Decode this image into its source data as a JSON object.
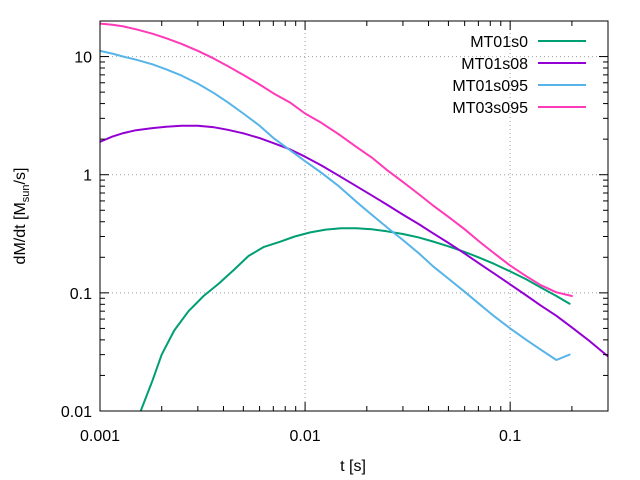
{
  "chart_data": {
    "type": "line",
    "xscale": "log",
    "yscale": "log",
    "xlim": [
      0.001,
      0.3
    ],
    "ylim": [
      0.01,
      20
    ],
    "xlabel": "t [s]",
    "ylabel": {
      "main": "dM/dt [M",
      "sub": "sun",
      "tail": "/s]"
    },
    "grid": true,
    "legend_position": "top-right",
    "xticks": [
      {
        "value": 0.001,
        "label": "0.001"
      },
      {
        "value": 0.01,
        "label": "0.01"
      },
      {
        "value": 0.1,
        "label": "0.1"
      }
    ],
    "yticks": [
      {
        "value": 0.01,
        "label": "0.01"
      },
      {
        "value": 0.1,
        "label": "0.1"
      },
      {
        "value": 1,
        "label": "1"
      },
      {
        "value": 10,
        "label": "10"
      }
    ],
    "series": [
      {
        "name": "MT01s0",
        "color": "#009e73",
        "x": [
          0.00158,
          0.0018,
          0.002,
          0.0023,
          0.0027,
          0.0032,
          0.0038,
          0.0045,
          0.0053,
          0.0063,
          0.0075,
          0.0089,
          0.0106,
          0.0126,
          0.015,
          0.0178,
          0.0211,
          0.025,
          0.03,
          0.0356,
          0.042,
          0.05,
          0.06,
          0.071,
          0.084,
          0.1,
          0.12,
          0.141,
          0.168,
          0.195
        ],
        "y": [
          0.01,
          0.018,
          0.03,
          0.048,
          0.07,
          0.094,
          0.12,
          0.157,
          0.205,
          0.245,
          0.27,
          0.3,
          0.325,
          0.343,
          0.352,
          0.352,
          0.345,
          0.332,
          0.315,
          0.295,
          0.272,
          0.248,
          0.222,
          0.198,
          0.175,
          0.152,
          0.13,
          0.111,
          0.094,
          0.081
        ]
      },
      {
        "name": "MT01s08",
        "color": "#9400d3",
        "x": [
          0.001,
          0.00115,
          0.0013,
          0.0015,
          0.0018,
          0.0021,
          0.0025,
          0.003,
          0.0036,
          0.0042,
          0.005,
          0.006,
          0.007,
          0.0085,
          0.01,
          0.012,
          0.0146,
          0.0178,
          0.0211,
          0.025,
          0.03,
          0.036,
          0.042,
          0.05,
          0.06,
          0.071,
          0.084,
          0.1,
          0.12,
          0.141,
          0.168,
          0.2,
          0.24,
          0.3
        ],
        "y": [
          1.9,
          2.1,
          2.25,
          2.38,
          2.48,
          2.55,
          2.6,
          2.6,
          2.52,
          2.4,
          2.24,
          2.04,
          1.85,
          1.63,
          1.42,
          1.2,
          0.98,
          0.8,
          0.67,
          0.56,
          0.46,
          0.38,
          0.32,
          0.265,
          0.215,
          0.176,
          0.145,
          0.118,
          0.095,
          0.078,
          0.064,
          0.051,
          0.04,
          0.029
        ]
      },
      {
        "name": "MT01s095",
        "color": "#56b4e9",
        "x": [
          0.001,
          0.00115,
          0.0013,
          0.0015,
          0.0018,
          0.0021,
          0.0025,
          0.003,
          0.0036,
          0.0042,
          0.005,
          0.006,
          0.007,
          0.0085,
          0.01,
          0.012,
          0.0146,
          0.0178,
          0.0211,
          0.025,
          0.03,
          0.036,
          0.042,
          0.05,
          0.06,
          0.071,
          0.084,
          0.1,
          0.12,
          0.141,
          0.168,
          0.195
        ],
        "y": [
          11.2,
          10.6,
          10.0,
          9.4,
          8.6,
          7.8,
          6.9,
          5.9,
          4.9,
          4.1,
          3.3,
          2.6,
          2.05,
          1.6,
          1.3,
          1.04,
          0.8,
          0.59,
          0.46,
          0.36,
          0.28,
          0.215,
          0.168,
          0.132,
          0.102,
          0.08,
          0.063,
          0.05,
          0.04,
          0.033,
          0.027,
          0.03
        ]
      },
      {
        "name": "MT03s095",
        "color": "#ff3ab8",
        "x": [
          0.001,
          0.00115,
          0.0013,
          0.0015,
          0.0018,
          0.0021,
          0.0025,
          0.003,
          0.0036,
          0.0042,
          0.005,
          0.006,
          0.007,
          0.0085,
          0.01,
          0.012,
          0.0146,
          0.0178,
          0.0211,
          0.025,
          0.03,
          0.036,
          0.042,
          0.05,
          0.06,
          0.071,
          0.084,
          0.1,
          0.12,
          0.141,
          0.168,
          0.2
        ],
        "y": [
          19.0,
          18.6,
          18.0,
          17.0,
          15.6,
          14.3,
          12.8,
          11.2,
          9.6,
          8.3,
          7.0,
          5.8,
          4.9,
          4.05,
          3.3,
          2.75,
          2.2,
          1.72,
          1.4,
          1.1,
          0.87,
          0.68,
          0.55,
          0.44,
          0.345,
          0.27,
          0.215,
          0.17,
          0.138,
          0.116,
          0.101,
          0.094
        ]
      }
    ]
  }
}
